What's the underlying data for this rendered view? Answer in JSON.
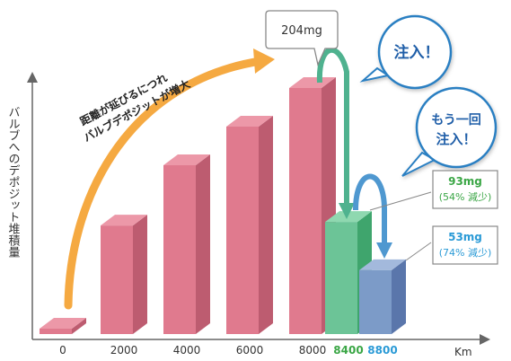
{
  "chart_data": {
    "type": "bar",
    "ylabel": "バルブへのデポジット堆積量",
    "xlabel": "Km",
    "categories": [
      "0",
      "2000",
      "4000",
      "6000",
      "8000",
      "8400",
      "8800"
    ],
    "values": [
      4,
      90,
      140,
      172,
      204,
      93,
      53
    ],
    "ylim": [
      0,
      204
    ],
    "grid": false,
    "annotations": {
      "arrow_text_line1": "距離が延びるにつれ",
      "arrow_text_line2": "バルブデポジットが増大",
      "peak_label": "204mg",
      "inject1": "注入！",
      "inject2_line1": "もう一回",
      "inject2_line2": "注入！",
      "reduce1_value": "93mg",
      "reduce1_pct": "(54% 減少)",
      "reduce2_value": "53mg",
      "reduce2_pct": "(74% 減少)"
    },
    "colors": {
      "pink": "#e07a8e",
      "green": "#6cc497",
      "blue": "#7c9bc8",
      "green_text": "#3aa645",
      "blue_text": "#2a9ad6",
      "orange_arrow": "#f5a941",
      "green_arrow": "#4fb28f",
      "blue_arrow": "#4f98d0"
    }
  }
}
